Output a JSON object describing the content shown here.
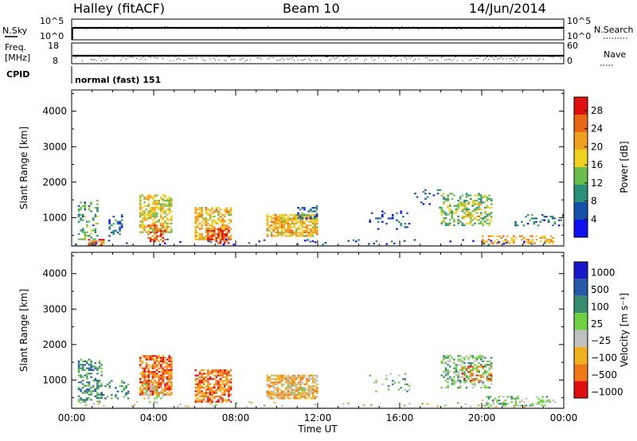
{
  "header": {
    "station": "Halley (fitACF)",
    "beam": "Beam 10",
    "date": "14/Jun/2014"
  },
  "chart_data": [
    {
      "type": "line",
      "panel": "noise",
      "ylabel_left": "N.Sky",
      "ylabel_right": "N.Search",
      "left_ticks": [
        "10^5",
        "10^0"
      ],
      "right_ticks": [
        "10^5",
        "10^0"
      ],
      "x": [
        0,
        24
      ],
      "series": [
        {
          "values": [
            10000,
            10000
          ]
        }
      ]
    },
    {
      "type": "line",
      "panel": "frequency",
      "ylabel_left": "Freq.",
      "ylabel_left_unit": "[MHz]",
      "ylabel_right": "Nave",
      "left_ticks": [
        "18",
        "8"
      ],
      "right_ticks": [
        "60",
        "0"
      ],
      "left_ylim": [
        8,
        18
      ],
      "right_ylim": [
        0,
        60
      ],
      "x": [
        0,
        24
      ],
      "series": [
        {
          "values": [
            11,
            11
          ]
        }
      ]
    },
    {
      "type": "table",
      "panel": "cpid",
      "ylabel": "CPID",
      "text": "normal (fast) 151"
    },
    {
      "type": "heatmap",
      "panel": "power",
      "ylabel": "Slant Range [km]",
      "yticks": [
        "1000",
        "2000",
        "3000",
        "4000"
      ],
      "ylim": [
        200,
        4600
      ],
      "xlim": [
        0,
        24
      ],
      "colorbar_label": "Power [dB]",
      "colorbar_ticks": [
        "4",
        "8",
        "12",
        "16",
        "20",
        "24",
        "28"
      ],
      "colorbar_range": [
        0,
        31
      ],
      "colors": [
        "#1010ee",
        "#1450a8",
        "#2a8f78",
        "#6abd4c",
        "#f0d020",
        "#f0a020",
        "#e86818",
        "#e01010"
      ],
      "patches": [
        {
          "t": [
            0.3,
            1.3
          ],
          "r": [
            400,
            1500
          ],
          "v": 12,
          "d": 0.3
        },
        {
          "t": [
            0.8,
            1.6
          ],
          "r": [
            250,
            400
          ],
          "v": 26,
          "d": 0.6
        },
        {
          "t": [
            1.8,
            2.5
          ],
          "r": [
            500,
            1100
          ],
          "v": 8,
          "d": 0.25
        },
        {
          "t": [
            3.3,
            4.9
          ],
          "r": [
            600,
            1650
          ],
          "v": 18,
          "d": 0.65
        },
        {
          "t": [
            3.7,
            4.6
          ],
          "r": [
            350,
            800
          ],
          "v": 26,
          "d": 0.5
        },
        {
          "t": [
            6.0,
            7.8
          ],
          "r": [
            400,
            1300
          ],
          "v": 20,
          "d": 0.6
        },
        {
          "t": [
            6.6,
            7.7
          ],
          "r": [
            300,
            700
          ],
          "v": 28,
          "d": 0.55
        },
        {
          "t": [
            9.5,
            12.0
          ],
          "r": [
            500,
            1100
          ],
          "v": 20,
          "d": 0.75
        },
        {
          "t": [
            11.0,
            12.0
          ],
          "r": [
            1000,
            1350
          ],
          "v": 8,
          "d": 0.35
        },
        {
          "t": [
            14.5,
            16.5
          ],
          "r": [
            700,
            1200
          ],
          "v": 6,
          "d": 0.15
        },
        {
          "t": [
            16.5,
            18.0
          ],
          "r": [
            1300,
            1800
          ],
          "v": 6,
          "d": 0.12
        },
        {
          "t": [
            18.0,
            20.5
          ],
          "r": [
            800,
            1700
          ],
          "v": 14,
          "d": 0.35
        },
        {
          "t": [
            19.0,
            20.0
          ],
          "r": [
            1000,
            1400
          ],
          "v": 20,
          "d": 0.4
        },
        {
          "t": [
            20.0,
            23.5
          ],
          "r": [
            280,
            500
          ],
          "v": 22,
          "d": 0.4
        },
        {
          "t": [
            21.5,
            24.0
          ],
          "r": [
            800,
            1100
          ],
          "v": 8,
          "d": 0.25
        }
      ]
    },
    {
      "type": "heatmap",
      "panel": "velocity",
      "ylabel": "Slant Range [km]",
      "yticks": [
        "1000",
        "2000",
        "3000",
        "4000"
      ],
      "ylim": [
        200,
        4600
      ],
      "xlabel": "Time UT",
      "xticks": [
        "00:00",
        "04:00",
        "08:00",
        "12:00",
        "16:00",
        "20:00",
        "00:00"
      ],
      "xlim": [
        0,
        24
      ],
      "colorbar_label": "Velocity [m s⁻¹]",
      "colorbar_ticks": [
        "1000",
        "500",
        "100",
        "25",
        "−25",
        "−100",
        "−500",
        "−1000"
      ],
      "colors": [
        "#1818c8",
        "#2858a8",
        "#3a8a70",
        "#70d040",
        "#c0c0c0",
        "#f0b020",
        "#f07818",
        "#e01010"
      ],
      "patches": [
        {
          "t": [
            0.3,
            1.5
          ],
          "r": [
            400,
            1600
          ],
          "v": 2,
          "d": 0.4
        },
        {
          "t": [
            1.5,
            2.8
          ],
          "r": [
            500,
            1000
          ],
          "v": 2,
          "d": 0.25
        },
        {
          "t": [
            3.3,
            4.9
          ],
          "r": [
            600,
            1700
          ],
          "v": 6,
          "d": 0.7
        },
        {
          "t": [
            3.5,
            4.5
          ],
          "r": [
            500,
            900
          ],
          "v": 4,
          "d": 0.4
        },
        {
          "t": [
            6.0,
            7.8
          ],
          "r": [
            400,
            1300
          ],
          "v": 6,
          "d": 0.65
        },
        {
          "t": [
            9.5,
            12.0
          ],
          "r": [
            500,
            1150
          ],
          "v": 5,
          "d": 0.75
        },
        {
          "t": [
            10.5,
            11.5
          ],
          "r": [
            600,
            900
          ],
          "v": 4,
          "d": 0.45
        },
        {
          "t": [
            14.5,
            16.5
          ],
          "r": [
            700,
            1200
          ],
          "v": 3,
          "d": 0.15
        },
        {
          "t": [
            18.0,
            20.5
          ],
          "r": [
            800,
            1700
          ],
          "v": 3,
          "d": 0.4
        },
        {
          "t": [
            19.0,
            20.5
          ],
          "r": [
            1000,
            1400
          ],
          "v": 6,
          "d": 0.3
        },
        {
          "t": [
            20.0,
            23.5
          ],
          "r": [
            280,
            550
          ],
          "v": 3,
          "d": 0.35
        }
      ]
    }
  ]
}
